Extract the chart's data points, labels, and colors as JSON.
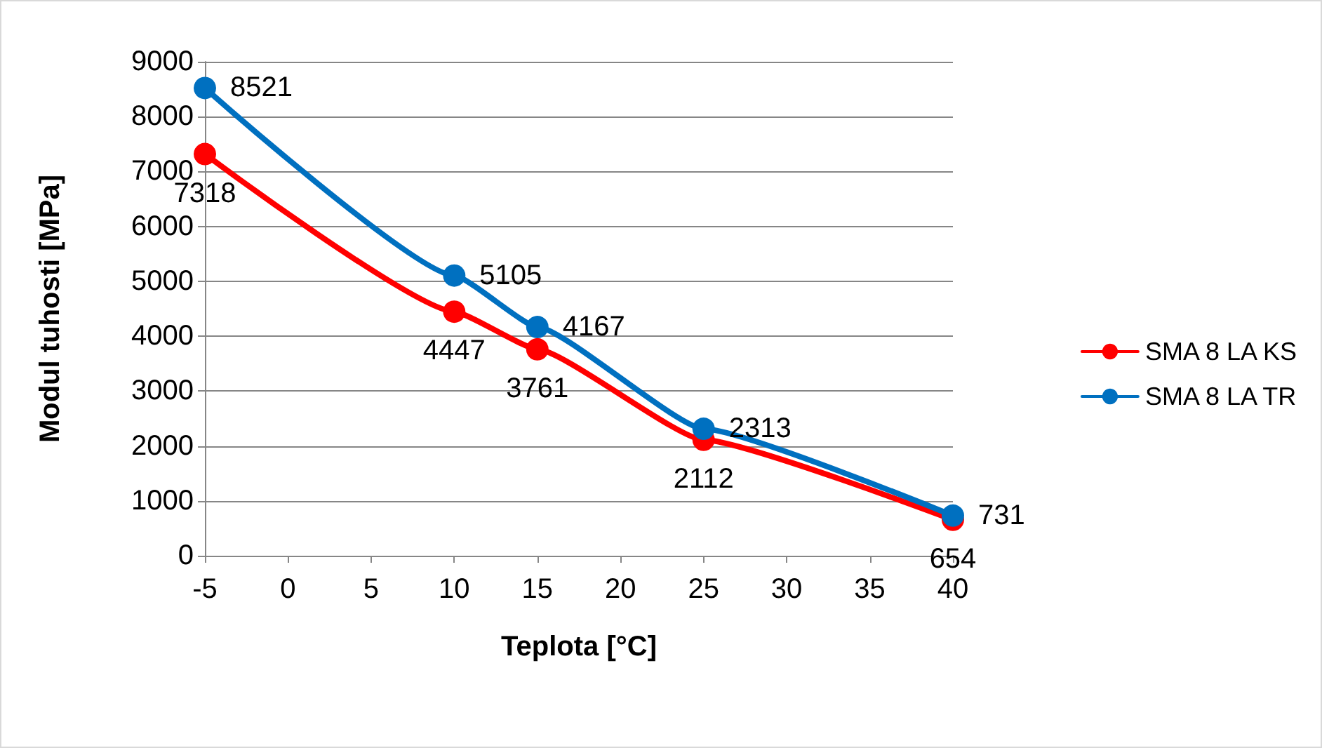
{
  "chart_data": {
    "type": "line",
    "xlabel": "Teplota [°C]",
    "ylabel": "Modul tuhosti [MPa]",
    "x": [
      -5,
      10,
      15,
      25,
      40
    ],
    "series": [
      {
        "name": "SMA 8 LA KS",
        "color": "#ff0000",
        "values": [
          7318,
          4447,
          3761,
          2112,
          654
        ]
      },
      {
        "name": "SMA 8 LA TR",
        "color": "#0070c0",
        "values": [
          8521,
          5105,
          4167,
          2313,
          731
        ]
      }
    ],
    "xlim": [
      -5,
      40
    ],
    "xticks": [
      -5,
      0,
      5,
      10,
      15,
      20,
      25,
      30,
      35,
      40
    ],
    "ylim": [
      0,
      9000
    ],
    "yticks": [
      0,
      1000,
      2000,
      3000,
      4000,
      5000,
      6000,
      7000,
      8000,
      9000
    ],
    "grid": "y",
    "legend": "right",
    "marker": "circle",
    "line_style": "solid",
    "data_labels": true
  }
}
